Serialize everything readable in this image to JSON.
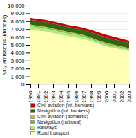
{
  "chart_data": {
    "type": "area",
    "stacked": true,
    "ylabel": "NOₓ emissions (ktonnes)",
    "x": [
      1990,
      1991,
      1992,
      1993,
      1994,
      1995,
      1996,
      1997,
      1998,
      1999,
      2000,
      2001,
      2002,
      2003
    ],
    "series": [
      {
        "name": "Road transport",
        "color": "#ffffb3",
        "values": [
          6950,
          6800,
          6700,
          6500,
          6300,
          6100,
          5950,
          5750,
          5450,
          5100,
          4800,
          4600,
          4400,
          4200
        ]
      },
      {
        "name": "Railways",
        "color": "#b3e87a",
        "values": [
          420,
          410,
          390,
          370,
          355,
          335,
          315,
          300,
          280,
          265,
          250,
          235,
          225,
          215
        ]
      },
      {
        "name": "Navigation (national)",
        "color": "#6abf45",
        "values": [
          160,
          155,
          150,
          145,
          140,
          138,
          135,
          132,
          130,
          128,
          125,
          122,
          120,
          118
        ]
      },
      {
        "name": "Civil aviation (domestic)",
        "color": "#f5a623",
        "values": [
          60,
          62,
          63,
          62,
          63,
          64,
          65,
          65,
          66,
          66,
          67,
          67,
          67,
          66
        ]
      },
      {
        "name": "Navigation (int. bunkers)",
        "color": "#2d6614",
        "values": [
          600,
          620,
          630,
          625,
          620,
          618,
          615,
          630,
          660,
          690,
          710,
          700,
          670,
          640
        ]
      },
      {
        "name": "Civil aviation (int. bunkers)",
        "color": "#cc0000",
        "values": [
          230,
          245,
          255,
          260,
          265,
          270,
          285,
          295,
          310,
          320,
          325,
          315,
          305,
          295
        ]
      }
    ],
    "xlim": [
      1990,
      2003
    ],
    "xticks": [
      1990,
      1991,
      1992,
      1993,
      1994,
      1995,
      1996,
      1997,
      1998,
      1999,
      2000,
      2001,
      2002,
      2003
    ],
    "ylim": [
      0,
      10000
    ],
    "yticks": [
      0,
      {
        "value": 1000,
        "label": "1 000"
      },
      {
        "value": 2000,
        "label": "2 000"
      },
      {
        "value": 3000,
        "label": "3 000"
      },
      {
        "value": 4000,
        "label": "4 000"
      },
      {
        "value": 5000,
        "label": "5 000"
      },
      {
        "value": 6000,
        "label": "6 000"
      },
      {
        "value": 7000,
        "label": "7 000"
      },
      {
        "value": 8000,
        "label": "8 000"
      },
      {
        "value": 9000,
        "label": "9 000"
      },
      {
        "value": 10000,
        "label": "10 000"
      }
    ],
    "grid": true,
    "legend": "bottom"
  }
}
